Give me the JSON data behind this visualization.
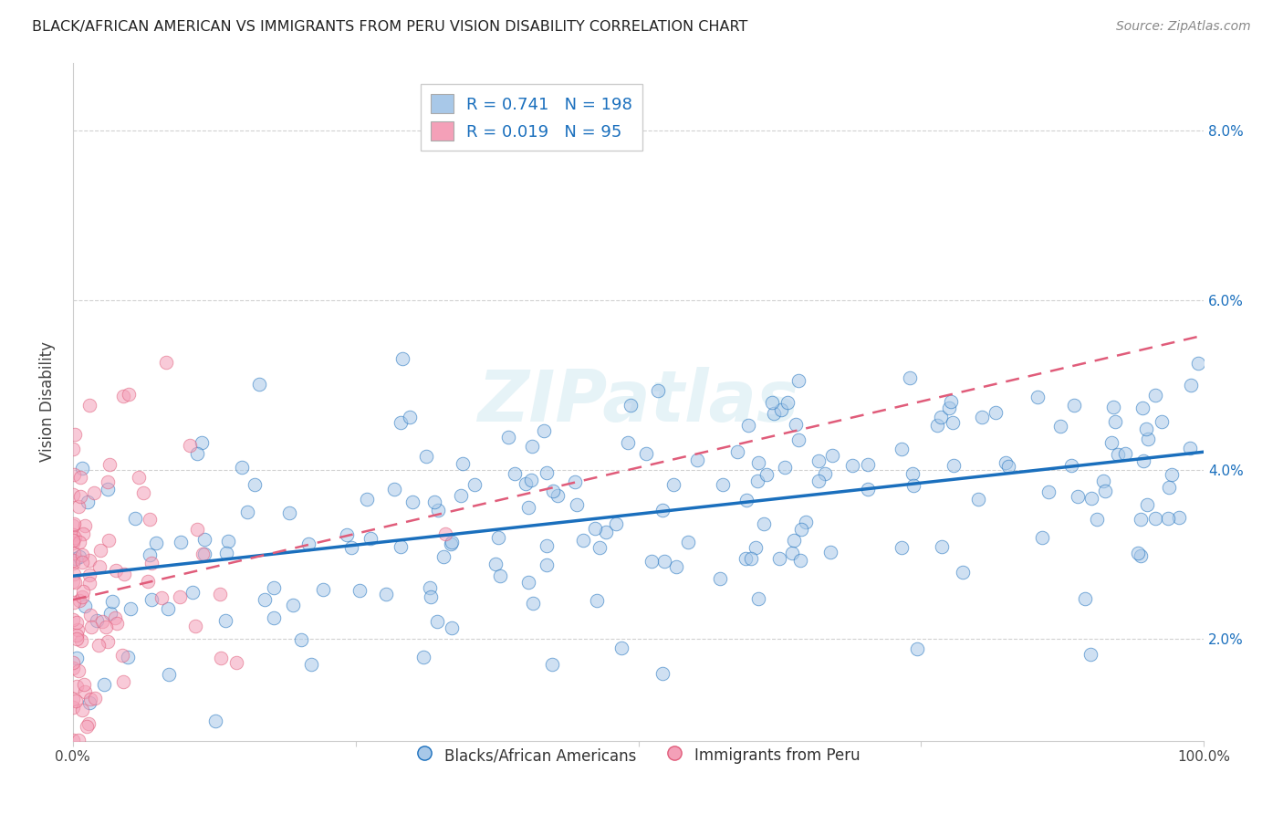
{
  "title": "BLACK/AFRICAN AMERICAN VS IMMIGRANTS FROM PERU VISION DISABILITY CORRELATION CHART",
  "source": "Source: ZipAtlas.com",
  "ylabel": "Vision Disability",
  "legend_label1": "Blacks/African Americans",
  "legend_label2": "Immigrants from Peru",
  "R1": 0.741,
  "N1": 198,
  "R2": 0.019,
  "N2": 95,
  "color_blue": "#a8c8e8",
  "color_pink": "#f4a0b8",
  "line_blue": "#1a6fbd",
  "line_pink": "#e05c7a",
  "watermark": "ZIPatlas",
  "xlim": [
    0.0,
    1.0
  ],
  "ylim": [
    0.008,
    0.088
  ],
  "yticks": [
    0.02,
    0.04,
    0.06,
    0.08
  ],
  "ytick_labels": [
    "2.0%",
    "4.0%",
    "6.0%",
    "8.0%"
  ],
  "blue_seed": 12,
  "pink_seed": 99
}
